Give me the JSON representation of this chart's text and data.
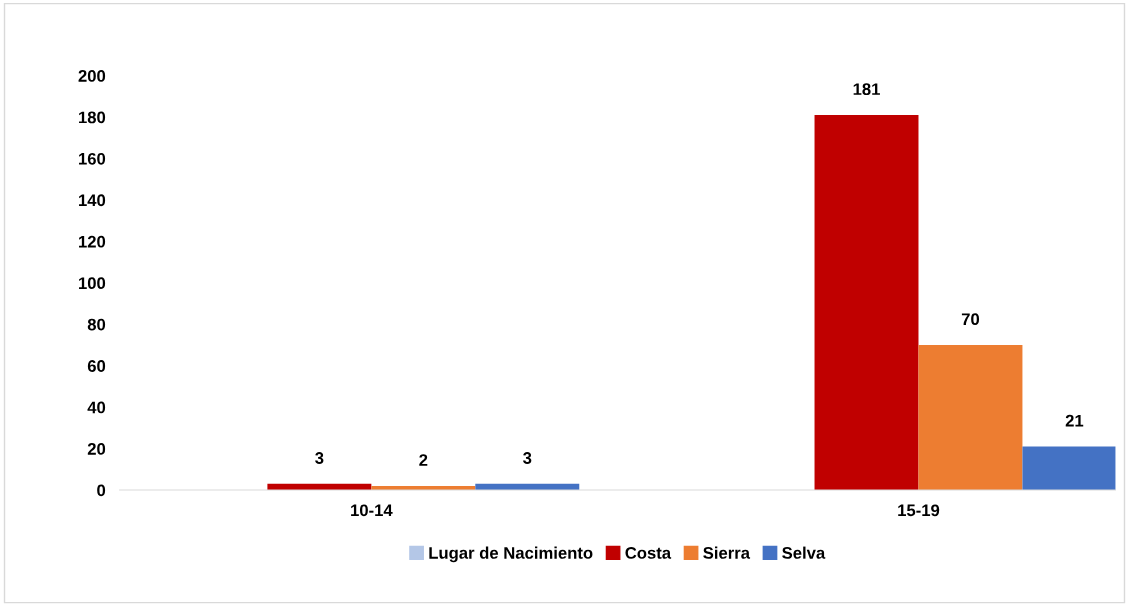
{
  "chart_data": {
    "type": "bar",
    "categories": [
      "10-14",
      "15-19"
    ],
    "series": [
      {
        "name": "Lugar de Nacimiento",
        "color": "#b4c7e7",
        "values": [
          null,
          null
        ]
      },
      {
        "name": "Costa",
        "color": "#c00000",
        "values": [
          3,
          181
        ]
      },
      {
        "name": "Sierra",
        "color": "#ed7d31",
        "values": [
          2,
          70
        ]
      },
      {
        "name": "Selva",
        "color": "#4472c4",
        "values": [
          3,
          21
        ]
      }
    ],
    "ylim": [
      0,
      200
    ],
    "yticks": [
      0,
      20,
      40,
      60,
      80,
      100,
      120,
      140,
      160,
      180,
      200
    ],
    "data_labels": true,
    "grid": false,
    "legend": "bottom"
  }
}
